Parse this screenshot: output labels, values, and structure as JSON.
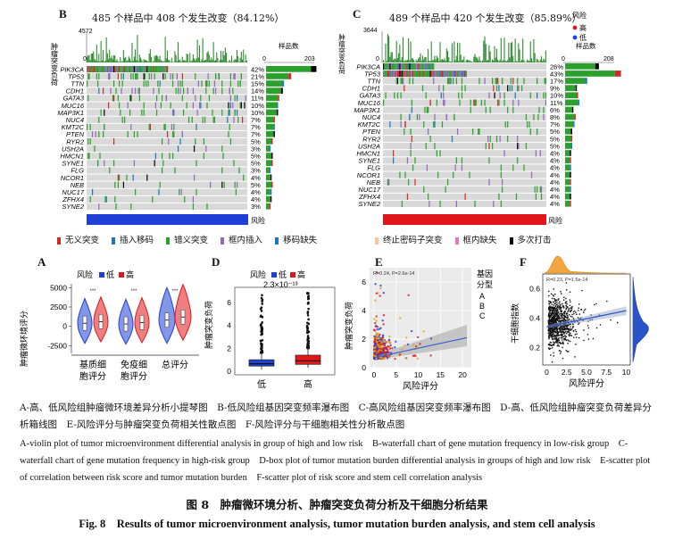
{
  "panels": {
    "B": {
      "letter": "B",
      "title": "485 个样品中 408 个发生改变（84.12%）",
      "ytitle": "肿瘤突变负荷",
      "ymax": "4572",
      "ymin": "0",
      "count_label": "样品数",
      "count_axis": [
        "0",
        "203"
      ],
      "risk_label": "风险",
      "risk_color": "#1f3fd6",
      "genes": [
        "PIK3CA",
        "TP53",
        "TTN",
        "CDH1",
        "GATA3",
        "MUC16",
        "MAP3K1",
        "NUC4",
        "KMT2C",
        "PTEN",
        "RYR2",
        "USH2A",
        "HMCN1",
        "SYNE1",
        "FLG",
        "NCOR1",
        "NEB",
        "NUC17",
        "ZFHX4",
        "SYNE2"
      ],
      "pcts": [
        "42%",
        "21%",
        "15%",
        "14%",
        "11%",
        "10%",
        "10%",
        "7%",
        "7%",
        "7%",
        "5%",
        "3%",
        "5%",
        "5%",
        "3%",
        "4%",
        "5%",
        "4%",
        "4%",
        "3%"
      ]
    },
    "C": {
      "letter": "C",
      "title": "489 个样品中 420 个发生改变（85.89%）",
      "ytitle": "肿瘤突变负荷",
      "ymax": "3644",
      "ymin": "0",
      "count_label": "样品数",
      "count_axis": [
        "0",
        "208"
      ],
      "risk_label": "风险",
      "risk_color": "#e0161a",
      "genes": [
        "PIK3CA",
        "TP53",
        "TTN",
        "CDH1",
        "GATA3",
        "MUC16",
        "MAP3K1",
        "NUC4",
        "KMT2C",
        "PTEN",
        "RYR2",
        "USH2A",
        "HMCN1",
        "SYNE1",
        "FLG",
        "NCOR1",
        "NEB",
        "NUC17",
        "ZFHX4",
        "SYNE2"
      ],
      "pcts": [
        "26%",
        "43%",
        "17%",
        "9%",
        "10%",
        "11%",
        "6%",
        "8%",
        "7%",
        "5%",
        "5%",
        "5%",
        "4%",
        "4%",
        "4%",
        "4%",
        "4%",
        "4%",
        "4%",
        "4%"
      ],
      "legend_title": "风险",
      "legend_items": [
        "高",
        "低"
      ]
    },
    "A": {
      "letter": "A",
      "legend_title": "风险",
      "legend_items": [
        "低",
        "高"
      ],
      "ylabel": "肿瘤微环境评分",
      "yticks": [
        "5000",
        "2500",
        "0",
        "-2500"
      ],
      "xticks": [
        "基质细\n胞评分",
        "免疫细\n胞评分",
        "总评分"
      ],
      "sig": [
        "***",
        "***",
        "***"
      ]
    },
    "D": {
      "letter": "D",
      "legend_title": "风险",
      "legend_items": [
        "低",
        "高"
      ],
      "pvalue": "2.3×10⁻¹³",
      "ylabel": "肿瘤突变负荷",
      "yticks": [
        "6",
        "4",
        "2",
        "0"
      ],
      "xticks": [
        "低",
        "高"
      ]
    },
    "E": {
      "letter": "E",
      "stat": "R=0.24, P=2.6e-14",
      "ylabel": "肿瘤突变负荷",
      "xlabel": "风险评分",
      "yticks": [
        "6",
        "4",
        "2",
        "0"
      ],
      "xticks": [
        "0",
        "5",
        "10",
        "15",
        "20"
      ],
      "legend_title": "基因分型",
      "legend_items": [
        "A",
        "B",
        "C"
      ]
    },
    "F": {
      "letter": "F",
      "stat": "R=0.23, P=1.5e-14",
      "ylabel": "干细胞指数",
      "xlabel": "风险评分",
      "yticks": [
        "0.6",
        "0.4",
        "0.2"
      ],
      "xticks": [
        "0",
        "2.5",
        "5.0",
        "7.5",
        "10"
      ]
    }
  },
  "legend_b": {
    "items": [
      "无义突变",
      "插入移码",
      "错义突变",
      "框内插入",
      "移码缺失"
    ],
    "colors": [
      "#d62728",
      "#1f77b4",
      "#2ca02c",
      "#9467bd",
      "#1f77b4"
    ]
  },
  "legend_c": {
    "items": [
      "终止密码子突变",
      "框内缺失",
      "多次打击"
    ],
    "colors": [
      "#f4c6a3",
      "#e377c2",
      "#000000"
    ]
  },
  "caption_cn": "A-高、低风险组肿瘤微环境差异分析小提琴图　B-低风险组基因突变频率瀑布图　C-高风险组基因突变频率瀑布图　D-高、低风险组肿瘤突变负荷差异分析箱线图　E-风险评分与肿瘤突变负荷相关性散点图　F-风险评分与干细胞相关性分析散点图",
  "caption_en": "A-violin plot of tumor microenvironment differential analysis in group of high and low risk　B-waterfall chart of gene mutation frequency in low-risk group　C-waterfall chart of gene mutation frequency in high-risk group　D-box plot of tumor mutation burden differential analysis in groups of high and low risk　E-scatter plot of correlation between risk score and tumor mutation burden　F-scatter plot of risk score and stem cell correlation analysis",
  "figure_title_cn": "图 8　肿瘤微环境分析、肿瘤突变负荷分析及干细胞分析结果",
  "figure_title_en": "Fig. 8　Results of tumor microenvironment analysis, tumor mutation burden analysis, and stem cell analysis",
  "chart_data": [
    {
      "type": "bar",
      "panel": "B",
      "title": "485 个样品中 408 个发生改变（84.12%）",
      "categories": [
        "PIK3CA",
        "TP53",
        "TTN",
        "CDH1",
        "GATA3",
        "MUC16",
        "MAP3K1",
        "NUC4",
        "KMT2C",
        "PTEN",
        "RYR2",
        "USH2A",
        "HMCN1",
        "SYNE1",
        "FLG",
        "NCOR1",
        "NEB",
        "NUC17",
        "ZFHX4",
        "SYNE2"
      ],
      "values": [
        42,
        21,
        15,
        14,
        11,
        10,
        10,
        7,
        7,
        7,
        5,
        3,
        5,
        5,
        3,
        4,
        5,
        4,
        4,
        3
      ]
    },
    {
      "type": "bar",
      "panel": "C",
      "title": "489 个样品中 420 个发生改变（85.89%）",
      "categories": [
        "PIK3CA",
        "TP53",
        "TTN",
        "CDH1",
        "GATA3",
        "MUC16",
        "MAP3K1",
        "NUC4",
        "KMT2C",
        "PTEN",
        "RYR2",
        "USH2A",
        "HMCN1",
        "SYNE1",
        "FLG",
        "NCOR1",
        "NEB",
        "NUC17",
        "ZFHX4",
        "SYNE2"
      ],
      "values": [
        26,
        43,
        17,
        9,
        10,
        11,
        6,
        8,
        7,
        5,
        5,
        5,
        4,
        4,
        4,
        4,
        4,
        4,
        4,
        4
      ]
    },
    {
      "type": "violin",
      "panel": "A",
      "categories": [
        "基质细胞评分",
        "免疫细胞评分",
        "总评分"
      ],
      "series": [
        {
          "name": "低",
          "medians": [
            400,
            300,
            800
          ]
        },
        {
          "name": "高",
          "medians": [
            600,
            500,
            1200
          ]
        }
      ],
      "ylim": [
        -3500,
        5500
      ]
    },
    {
      "type": "box",
      "panel": "D",
      "categories": [
        "低",
        "高"
      ],
      "medians": [
        0.65,
        0.9
      ],
      "q1": [
        0.45,
        0.6
      ],
      "q3": [
        1.0,
        1.4
      ],
      "ylim": [
        0,
        7
      ]
    },
    {
      "type": "scatter",
      "panel": "E",
      "xlabel": "风险评分",
      "ylabel": "肿瘤突变负荷",
      "xlim": [
        -1,
        22
      ],
      "ylim": [
        0,
        7
      ],
      "fit": {
        "x": [
          0,
          21
        ],
        "y": [
          0.7,
          2.1
        ]
      }
    },
    {
      "type": "scatter",
      "panel": "F",
      "xlabel": "风险评分",
      "ylabel": "干细胞指数",
      "xlim": [
        -0.5,
        10.5
      ],
      "ylim": [
        0.08,
        0.7
      ],
      "fit": {
        "x": [
          0,
          10
        ],
        "y": [
          0.34,
          0.45
        ]
      }
    }
  ]
}
